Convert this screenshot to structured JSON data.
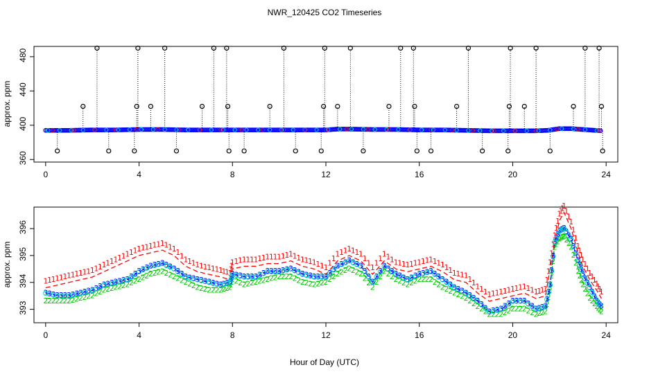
{
  "chart_data": [
    {
      "type": "scatter",
      "title": "NWR_120425  CO2 Timeseries",
      "xlabel": "",
      "ylabel": "approx. ppm",
      "xlim": [
        -0.5,
        24.5
      ],
      "ylim": [
        357,
        492
      ],
      "xticks": [
        0,
        4,
        8,
        12,
        16,
        20,
        24
      ],
      "yticks": [
        360,
        400,
        440,
        480
      ],
      "baseline": {
        "x": [
          0,
          1,
          2,
          3,
          4,
          5,
          6,
          7,
          8,
          9,
          10,
          11,
          12,
          12.5,
          13,
          14,
          15,
          16,
          17,
          18,
          19,
          20,
          20.5,
          21,
          21.5,
          22,
          22.5,
          23,
          23.8
        ],
        "y": [
          394,
          394,
          394.5,
          394.5,
          395,
          395,
          394.5,
          394.5,
          394.5,
          394.5,
          394.5,
          394.5,
          394.5,
          395.5,
          395.5,
          395,
          395,
          394.5,
          394.5,
          394,
          393.5,
          393.5,
          393.5,
          393.5,
          394,
          396,
          396,
          395,
          393.5
        ]
      },
      "outliers": {
        "x": [
          0.5,
          1.6,
          2.2,
          2.7,
          3.8,
          3.9,
          3.95,
          4.5,
          5.1,
          5.6,
          6.7,
          7.2,
          7.75,
          7.8,
          7.85,
          8.5,
          9.6,
          10.2,
          10.7,
          11.8,
          11.9,
          11.95,
          12.5,
          13.05,
          13.6,
          14.7,
          15.2,
          15.75,
          15.8,
          15.9,
          16.5,
          17.6,
          18.1,
          18.7,
          19.8,
          19.85,
          19.9,
          20.5,
          21.0,
          21.6,
          22.6,
          23.1,
          23.7,
          23.8,
          23.85
        ]
      },
      "outliers_y": [
        370,
        422,
        490,
        370,
        370,
        422,
        490,
        422,
        490,
        370,
        422,
        490,
        490,
        422,
        370,
        370,
        422,
        490,
        370,
        370,
        422,
        490,
        422,
        490,
        370,
        422,
        490,
        490,
        422,
        370,
        370,
        422,
        490,
        370,
        370,
        422,
        490,
        422,
        490,
        370,
        422,
        490,
        490,
        422,
        370
      ]
    },
    {
      "type": "line",
      "title": "",
      "xlabel": "Hour of Day (UTC)",
      "ylabel": "approx. ppm",
      "xlim": [
        -0.5,
        24.5
      ],
      "ylim": [
        392.5,
        396.8
      ],
      "xticks": [
        0,
        4,
        8,
        12,
        16,
        20,
        24
      ],
      "yticks": [
        393,
        394,
        395,
        396
      ],
      "x": [
        0,
        0.5,
        1,
        1.5,
        2,
        2.5,
        3,
        3.5,
        4,
        4.5,
        5,
        5.5,
        6,
        6.5,
        7,
        7.5,
        7.9,
        8,
        8.5,
        9,
        9.5,
        10,
        10.5,
        11,
        11.5,
        12,
        12.5,
        13,
        13.5,
        14,
        14.5,
        15,
        15.5,
        16,
        16.5,
        17,
        17.5,
        18,
        18.5,
        19,
        19.5,
        20,
        20.5,
        21,
        21.4,
        21.6,
        21.8,
        22,
        22.2,
        22.5,
        22.8,
        23,
        23.3,
        23.6,
        23.8
      ],
      "series": [
        {
          "name": "1",
          "marker": "1",
          "color": "#ff0000",
          "values": [
            393.8,
            393.9,
            394,
            394.1,
            394.2,
            394.4,
            394.6,
            394.8,
            395,
            395.1,
            395.2,
            395,
            394.6,
            394.4,
            394.3,
            394.2,
            394.1,
            394.5,
            394.6,
            394.6,
            394.7,
            394.7,
            394.8,
            394.6,
            394.5,
            394.3,
            394.8,
            395,
            394.8,
            394.3,
            394.8,
            394.5,
            394.4,
            394.5,
            394.6,
            394.4,
            394.1,
            394,
            393.6,
            393.3,
            393.4,
            393.5,
            393.6,
            393.4,
            393.5,
            394.5,
            395.5,
            396.3,
            396.6,
            396,
            395.1,
            394.6,
            394.1,
            393.7,
            393.4
          ]
        },
        {
          "name": "2",
          "marker": "2",
          "color": "#00cc00",
          "values": [
            393.4,
            393.4,
            393.4,
            393.5,
            393.6,
            393.8,
            393.9,
            394,
            394.2,
            394.4,
            394.5,
            394.3,
            394.1,
            393.9,
            393.8,
            393.8,
            393.9,
            394.2,
            394,
            394.1,
            394.2,
            394.3,
            394.3,
            394.1,
            394,
            394.1,
            394.4,
            394.6,
            394.4,
            393.9,
            394.5,
            394.2,
            394,
            394.2,
            394.2,
            393.9,
            393.7,
            393.5,
            393.2,
            392.9,
            392.9,
            393.1,
            393.1,
            392.9,
            393,
            393.8,
            395.4,
            395.7,
            395.8,
            395.4,
            394.5,
            394,
            393.5,
            393.2,
            393
          ]
        },
        {
          "name": "3",
          "marker": "3",
          "color": "#0000ff",
          "values": [
            393.6,
            393.5,
            393.5,
            393.6,
            393.7,
            393.9,
            394,
            394.1,
            394.4,
            394.6,
            394.7,
            394.5,
            394.2,
            394.1,
            394,
            393.9,
            394,
            394.3,
            394.2,
            394.2,
            394.4,
            394.4,
            394.5,
            394.3,
            394.2,
            394.2,
            394.6,
            394.8,
            394.6,
            394,
            394.6,
            394.3,
            394.1,
            394.3,
            394.4,
            394.1,
            393.8,
            393.6,
            393.3,
            392.9,
            393,
            393.3,
            393.3,
            393,
            393.1,
            393.9,
            395.5,
            395.9,
            396,
            395.6,
            394.8,
            394.3,
            393.8,
            393.3,
            393.1
          ]
        },
        {
          "name": "o",
          "marker": "o",
          "color": "#00cccc",
          "values": [
            393.6,
            393.5,
            393.5,
            393.6,
            393.7,
            393.9,
            394,
            394.1,
            394.4,
            394.6,
            394.7,
            394.5,
            394.2,
            394.1,
            394,
            393.9,
            394,
            394.3,
            394.2,
            394.2,
            394.4,
            394.4,
            394.5,
            394.3,
            394.2,
            394.2,
            394.6,
            394.8,
            394.6,
            394,
            394.6,
            394.3,
            394.1,
            394.3,
            394.4,
            394.1,
            393.8,
            393.6,
            393.3,
            392.9,
            393,
            393.3,
            393.3,
            393,
            393.1,
            393.9,
            395.5,
            395.9,
            396,
            395.6,
            394.8,
            394.3,
            393.8,
            393.3,
            393.1
          ]
        }
      ]
    }
  ]
}
